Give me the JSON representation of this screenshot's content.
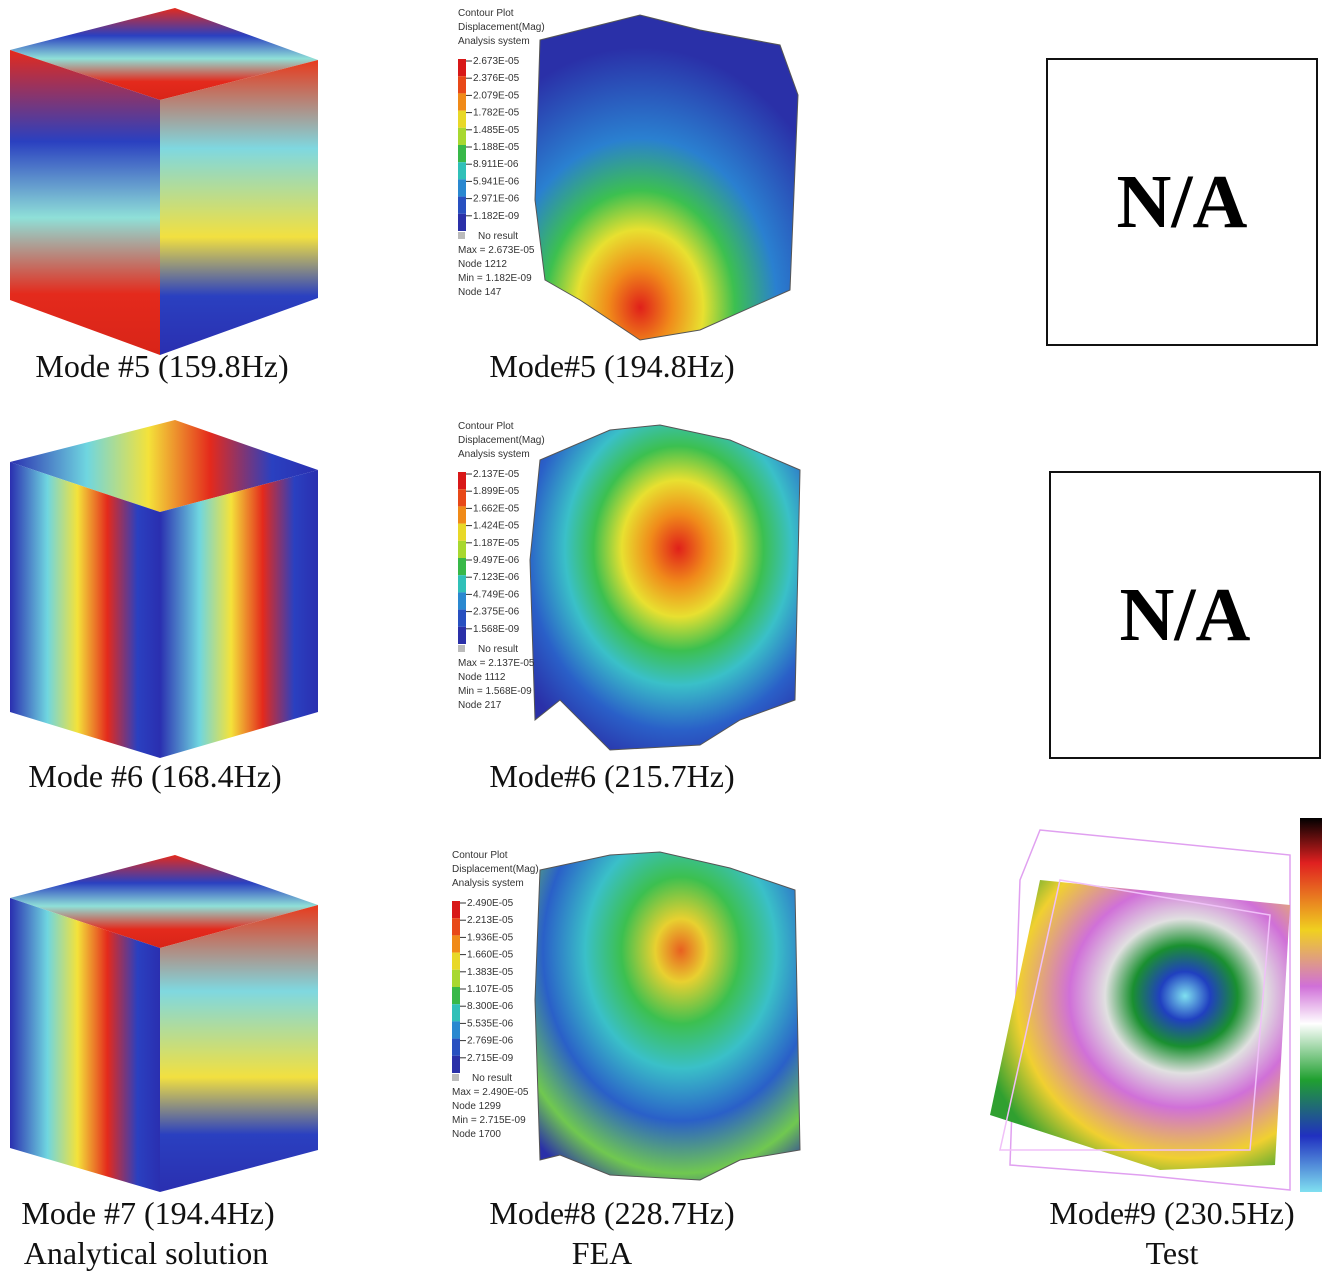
{
  "analytical": {
    "label": "Analytical solution",
    "captions": [
      "Mode #5 (159.8Hz)",
      "Mode #6 (168.4Hz)",
      "Mode #7 (194.4Hz)"
    ]
  },
  "fea": {
    "label": "FEA",
    "plots": [
      {
        "caption": "Mode#5 (194.8Hz)",
        "header": [
          "Contour Plot",
          "Displacement(Mag)",
          "Analysis system"
        ],
        "levels": [
          "2.673E-05",
          "2.376E-05",
          "2.079E-05",
          "1.782E-05",
          "1.485E-05",
          "1.188E-05",
          "8.911E-06",
          "5.941E-06",
          "2.971E-06",
          "1.182E-09"
        ],
        "no_result": "No result",
        "stats": [
          "Max = 2.673E-05",
          "Node 1212",
          "Min = 1.182E-09",
          "Node 147"
        ]
      },
      {
        "caption": "Mode#6 (215.7Hz)",
        "header": [
          "Contour Plot",
          "Displacement(Mag)",
          "Analysis system"
        ],
        "levels": [
          "2.137E-05",
          "1.899E-05",
          "1.662E-05",
          "1.424E-05",
          "1.187E-05",
          "9.497E-06",
          "7.123E-06",
          "4.749E-06",
          "2.375E-06",
          "1.568E-09"
        ],
        "no_result": "No result",
        "stats": [
          "Max = 2.137E-05",
          "Node 1112",
          "Min = 1.568E-09",
          "Node 217"
        ]
      },
      {
        "caption": "Mode#8 (228.7Hz)",
        "header": [
          "Contour Plot",
          "Displacement(Mag)",
          "Analysis system"
        ],
        "levels": [
          "2.490E-05",
          "2.213E-05",
          "1.936E-05",
          "1.660E-05",
          "1.383E-05",
          "1.107E-05",
          "8.300E-06",
          "5.535E-06",
          "2.769E-06",
          "2.715E-09"
        ],
        "no_result": "No result",
        "stats": [
          "Max = 2.490E-05",
          "Node 1299",
          "Min = 2.715E-09",
          "Node 1700"
        ]
      }
    ]
  },
  "test": {
    "label": "Test",
    "placeholders": [
      "N/A",
      "N/A"
    ],
    "caption": "Mode#9 (230.5Hz)"
  }
}
